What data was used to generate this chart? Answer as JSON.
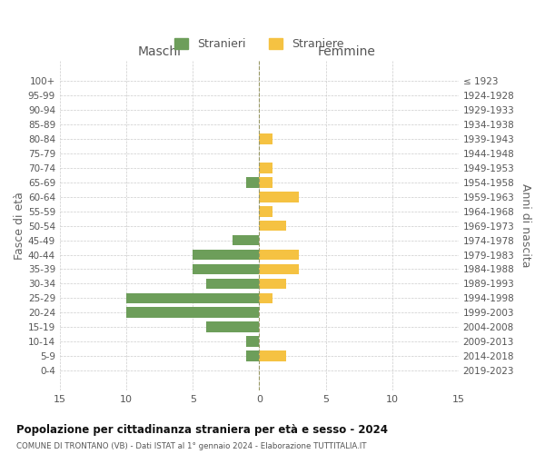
{
  "age_groups": [
    "100+",
    "95-99",
    "90-94",
    "85-89",
    "80-84",
    "75-79",
    "70-74",
    "65-69",
    "60-64",
    "55-59",
    "50-54",
    "45-49",
    "40-44",
    "35-39",
    "30-34",
    "25-29",
    "20-24",
    "15-19",
    "10-14",
    "5-9",
    "0-4"
  ],
  "birth_years": [
    "≤ 1923",
    "1924-1928",
    "1929-1933",
    "1934-1938",
    "1939-1943",
    "1944-1948",
    "1949-1953",
    "1954-1958",
    "1959-1963",
    "1964-1968",
    "1969-1973",
    "1974-1978",
    "1979-1983",
    "1984-1988",
    "1989-1993",
    "1994-1998",
    "1999-2003",
    "2004-2008",
    "2009-2013",
    "2014-2018",
    "2019-2023"
  ],
  "males": [
    0,
    0,
    0,
    0,
    0,
    0,
    0,
    1,
    0,
    0,
    0,
    2,
    5,
    5,
    4,
    10,
    10,
    4,
    1,
    1,
    0
  ],
  "females": [
    0,
    0,
    0,
    0,
    1,
    0,
    1,
    1,
    3,
    1,
    2,
    0,
    3,
    3,
    2,
    1,
    0,
    0,
    0,
    2,
    0
  ],
  "male_color": "#6d9e5a",
  "female_color": "#f5c242",
  "title": "Popolazione per cittadinanza straniera per età e sesso - 2024",
  "subtitle": "COMUNE DI TRONTANO (VB) - Dati ISTAT al 1° gennaio 2024 - Elaborazione TUTTITALIA.IT",
  "legend_male": "Stranieri",
  "legend_female": "Straniere",
  "xlabel_left": "Maschi",
  "xlabel_right": "Femmine",
  "ylabel_left": "Fasce di età",
  "ylabel_right": "Anni di nascita",
  "xlim": 15,
  "background_color": "#ffffff",
  "grid_color": "#cccccc"
}
